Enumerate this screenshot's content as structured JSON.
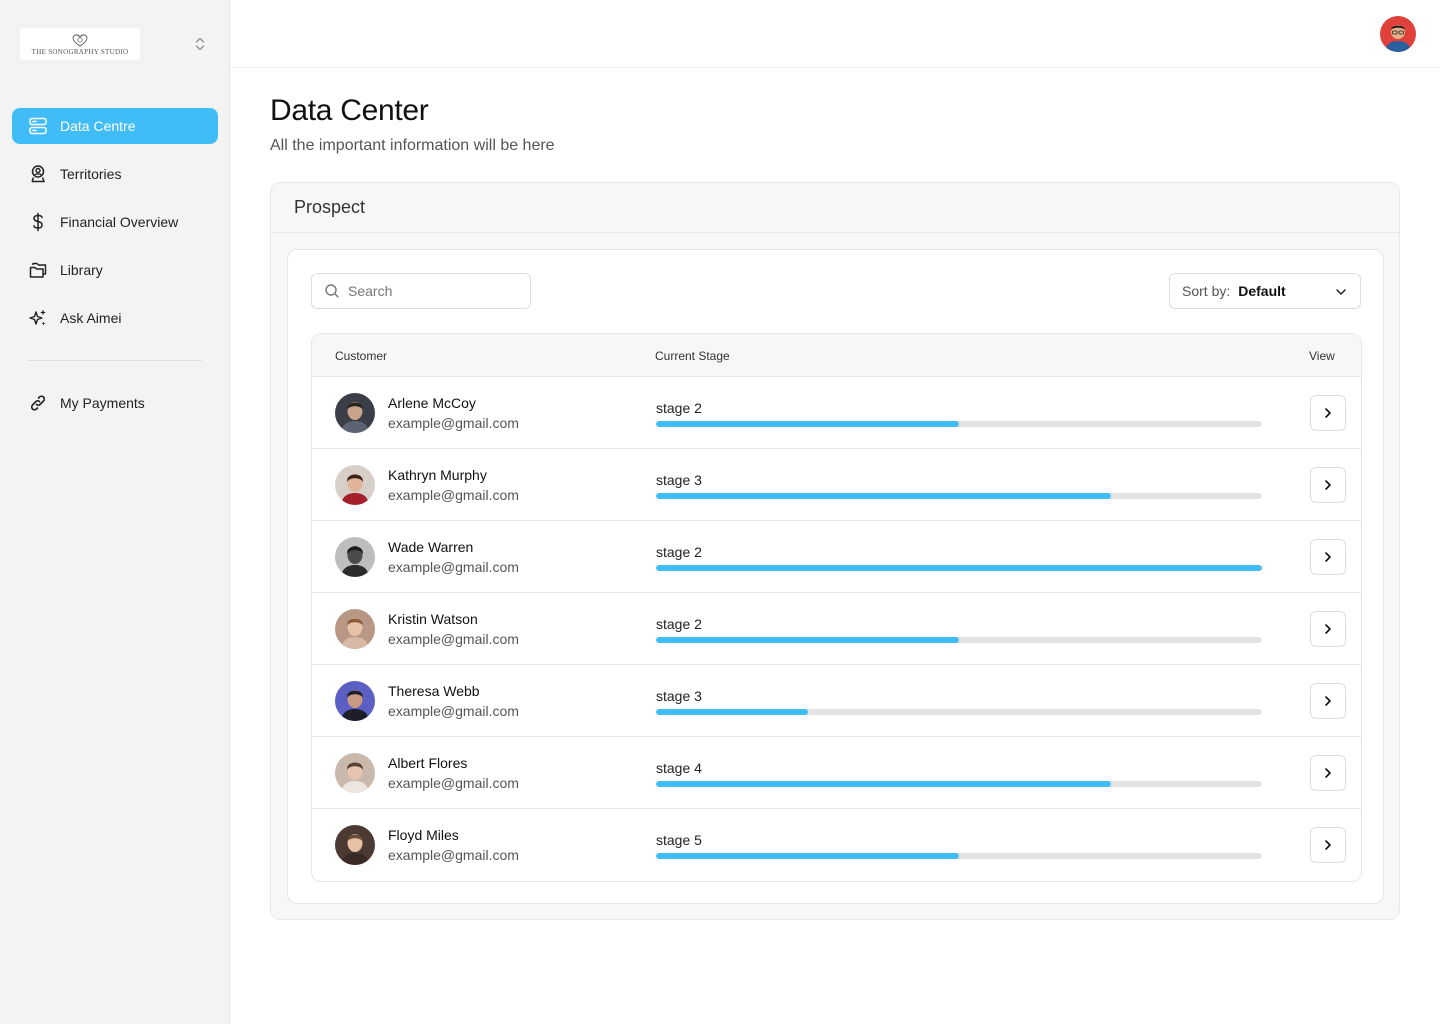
{
  "brand": {
    "name": "THE SONOGRAPHY STUDIO"
  },
  "sidebar": {
    "items": [
      {
        "label": "Data Centre",
        "icon": "server-icon",
        "active": true
      },
      {
        "label": "Territories",
        "icon": "map-pin-user-icon"
      },
      {
        "label": "Financial Overview",
        "icon": "dollar-icon"
      },
      {
        "label": "Library",
        "icon": "folders-icon"
      },
      {
        "label": "Ask Aimei",
        "icon": "sparkles-icon"
      }
    ],
    "secondary": [
      {
        "label": "My Payments",
        "icon": "link-icon"
      }
    ]
  },
  "page": {
    "title": "Data Center",
    "subtitle": "All the important information will be here"
  },
  "panel": {
    "title": "Prospect",
    "search_placeholder": "Search",
    "sort_label": "Sort by:",
    "sort_value": "Default"
  },
  "table": {
    "headers": {
      "customer": "Customer",
      "stage": "Current Stage",
      "view": "View"
    },
    "rows": [
      {
        "name": "Arlene McCoy",
        "email": "example@gmail.com",
        "stage": "stage 2",
        "progress": 0.5,
        "avatar": {
          "bg": "#3a3f47",
          "skin": "#c9a48c",
          "hair": "#2a2420",
          "shirt": "#5b6470"
        }
      },
      {
        "name": "Kathryn Murphy",
        "email": "example@gmail.com",
        "stage": "stage 3",
        "progress": 0.75,
        "avatar": {
          "bg": "#d8d0c8",
          "skin": "#e0b496",
          "hair": "#3a2418",
          "shirt": "#a3202c"
        }
      },
      {
        "name": "Wade Warren",
        "email": "example@gmail.com",
        "stage": "stage 2",
        "progress": 1.0,
        "avatar": {
          "bg": "#bdbdbd",
          "skin": "#4a4a4a",
          "hair": "#1e1e1e",
          "shirt": "#2b2b2b"
        }
      },
      {
        "name": "Kristin Watson",
        "email": "example@gmail.com",
        "stage": "stage 2",
        "progress": 0.5,
        "avatar": {
          "bg": "#b89884",
          "skin": "#e8c2a8",
          "hair": "#8a5a3a",
          "shirt": "#d6b8a4"
        }
      },
      {
        "name": "Theresa Webb",
        "email": "example@gmail.com",
        "stage": "stage 3",
        "progress": 0.25,
        "avatar": {
          "bg": "#5b5fc4",
          "skin": "#c89a82",
          "hair": "#1e1e28",
          "shirt": "#1e1e28"
        }
      },
      {
        "name": "Albert Flores",
        "email": "example@gmail.com",
        "stage": "stage 4",
        "progress": 0.75,
        "avatar": {
          "bg": "#c9b8ac",
          "skin": "#e6c4b0",
          "hair": "#5a4032",
          "shirt": "#ece6e0"
        }
      },
      {
        "name": "Floyd Miles",
        "email": "example@gmail.com",
        "stage": "stage 5",
        "progress": 0.5,
        "avatar": {
          "bg": "#4a3a32",
          "skin": "#e8c0a4",
          "hair": "#6a4a38",
          "shirt": "#3a2a24"
        }
      }
    ]
  },
  "colors": {
    "accent": "#40bcf6",
    "track": "#e4e4e4"
  }
}
